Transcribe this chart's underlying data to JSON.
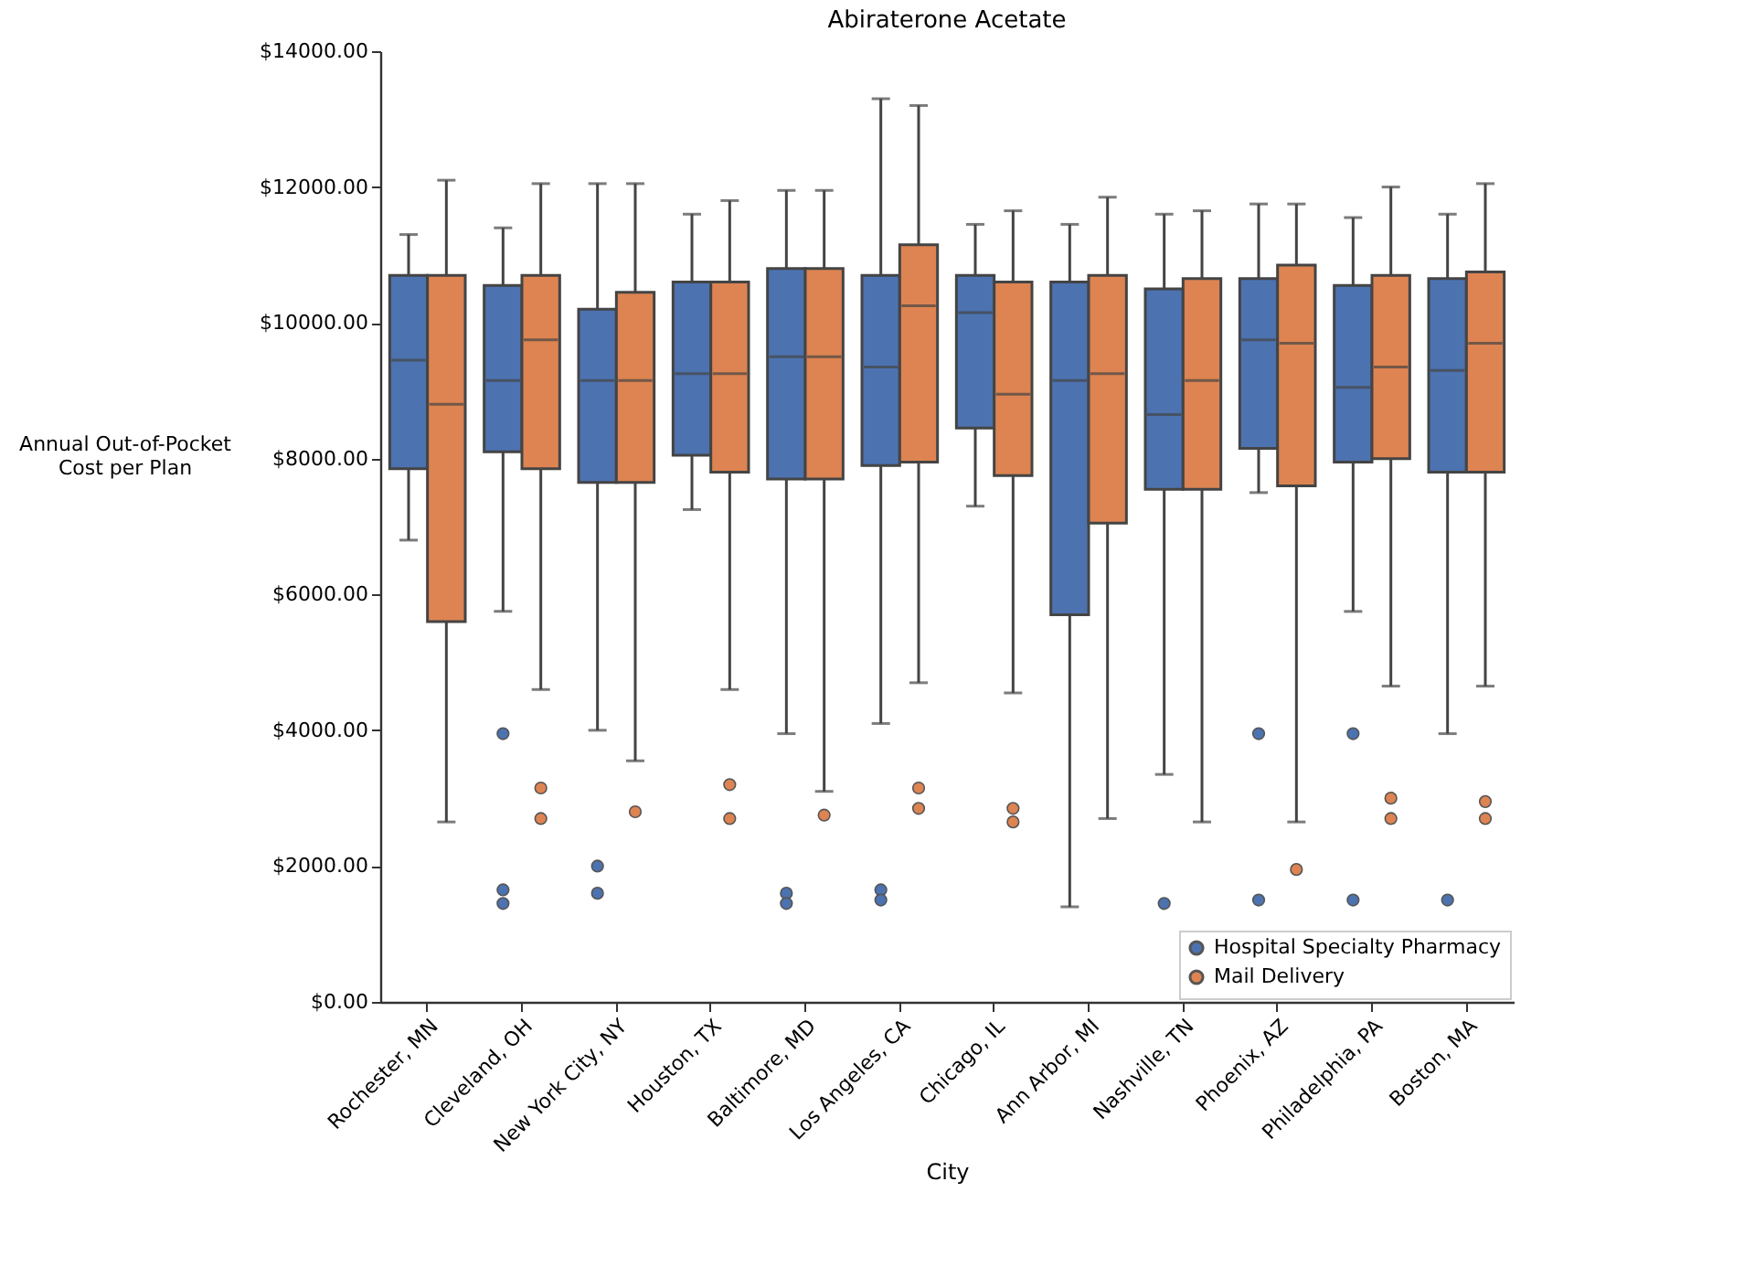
{
  "chart_data": {
    "type": "box",
    "title": "Abiraterone Acetate",
    "xlabel": "City",
    "ylabel": "Annual Out-of-Pocket Cost per Plan",
    "categories": [
      "Rochester, MN",
      "Cleveland, OH",
      "New York City, NY",
      "Houston, TX",
      "Baltimore, MD",
      "Los Angeles, CA",
      "Chicago, IL",
      "Ann Arbor, MI",
      "Nashville, TN",
      "Phoenix, AZ",
      "Philadelphia, PA",
      "Boston, MA"
    ],
    "ylim": [
      0,
      14000
    ],
    "yticks": [
      {
        "value": 0,
        "label": "$0.00"
      },
      {
        "value": 2000,
        "label": "$2000.00"
      },
      {
        "value": 4000,
        "label": "$4000.00"
      },
      {
        "value": 6000,
        "label": "$6000.00"
      },
      {
        "value": 8000,
        "label": "$8000.00"
      },
      {
        "value": 10000,
        "label": "$10000.00"
      },
      {
        "value": 12000,
        "label": "$12000.00"
      },
      {
        "value": 14000,
        "label": "$14000.00"
      }
    ],
    "grid": false,
    "legend": "bottom right",
    "series": [
      {
        "name": "Hospital Specialty Pharmacy",
        "color": "#4c72b0",
        "boxes": [
          {
            "low": 6800,
            "q1": 7850,
            "median": 9450,
            "q3": 10700,
            "high": 11300
          },
          {
            "low": 5750,
            "q1": 8100,
            "median": 9150,
            "q3": 10550,
            "high": 11400,
            "outliers": [
              3950,
              1650,
              1450
            ]
          },
          {
            "low": 4000,
            "q1": 7650,
            "median": 9150,
            "q3": 10200,
            "high": 12050,
            "outliers": [
              2000,
              1600
            ]
          },
          {
            "low": 7250,
            "q1": 8050,
            "median": 9250,
            "q3": 10600,
            "high": 11600
          },
          {
            "low": 3950,
            "q1": 7700,
            "median": 9500,
            "q3": 10800,
            "high": 11950,
            "outliers": [
              1600,
              1450
            ]
          },
          {
            "low": 4100,
            "q1": 7900,
            "median": 9350,
            "q3": 10700,
            "high": 13300,
            "outliers": [
              1650,
              1500
            ]
          },
          {
            "low": 7300,
            "q1": 8450,
            "median": 10150,
            "q3": 10700,
            "high": 11450
          },
          {
            "low": 1400,
            "q1": 5700,
            "median": 9150,
            "q3": 10600,
            "high": 11450
          },
          {
            "low": 3350,
            "q1": 7550,
            "median": 8650,
            "q3": 10500,
            "high": 11600,
            "outliers": [
              1450
            ]
          },
          {
            "low": 7500,
            "q1": 8150,
            "median": 9750,
            "q3": 10650,
            "high": 11750,
            "outliers": [
              3950,
              1500
            ]
          },
          {
            "low": 5750,
            "q1": 7950,
            "median": 9050,
            "q3": 10550,
            "high": 11550,
            "outliers": [
              3950,
              1500
            ]
          },
          {
            "low": 3950,
            "q1": 7800,
            "median": 9300,
            "q3": 10650,
            "high": 11600,
            "outliers": [
              1500
            ]
          }
        ]
      },
      {
        "name": "Mail Delivery",
        "color": "#dd8452",
        "boxes": [
          {
            "low": 2650,
            "q1": 5600,
            "median": 8800,
            "q3": 10700,
            "high": 12100
          },
          {
            "low": 4600,
            "q1": 7850,
            "median": 9750,
            "q3": 10700,
            "high": 12050,
            "outliers": [
              3150,
              2700
            ]
          },
          {
            "low": 3550,
            "q1": 7650,
            "median": 9150,
            "q3": 10450,
            "high": 12050,
            "outliers": [
              2800
            ]
          },
          {
            "low": 4600,
            "q1": 7800,
            "median": 9250,
            "q3": 10600,
            "high": 11800,
            "outliers": [
              3200,
              2700
            ]
          },
          {
            "low": 3100,
            "q1": 7700,
            "median": 9500,
            "q3": 10800,
            "high": 11950,
            "outliers": [
              2750
            ]
          },
          {
            "low": 4700,
            "q1": 7950,
            "median": 10250,
            "q3": 11150,
            "high": 13200,
            "outliers": [
              3150,
              2850
            ]
          },
          {
            "low": 4550,
            "q1": 7750,
            "median": 8950,
            "q3": 10600,
            "high": 11650,
            "outliers": [
              2850,
              2650
            ]
          },
          {
            "low": 2700,
            "q1": 7050,
            "median": 9250,
            "q3": 10700,
            "high": 11850
          },
          {
            "low": 2650,
            "q1": 7550,
            "median": 9150,
            "q3": 10650,
            "high": 11650
          },
          {
            "low": 2650,
            "q1": 7600,
            "median": 9700,
            "q3": 10850,
            "high": 11750,
            "outliers": [
              1950
            ]
          },
          {
            "low": 4650,
            "q1": 8000,
            "median": 9350,
            "q3": 10700,
            "high": 12000,
            "outliers": [
              3000,
              2700
            ]
          },
          {
            "low": 4650,
            "q1": 7800,
            "median": 9700,
            "q3": 10750,
            "high": 12050,
            "outliers": [
              2950,
              2700
            ]
          }
        ]
      }
    ]
  }
}
